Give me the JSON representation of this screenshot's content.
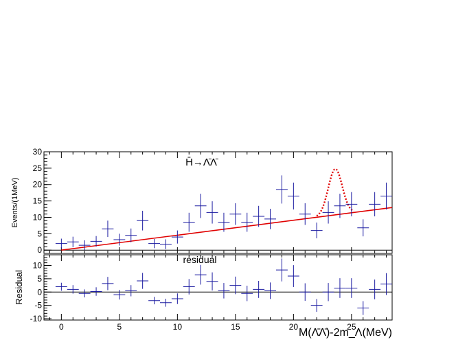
{
  "chart_data": [
    {
      "panel": "main",
      "type": "scatter",
      "title": "H̄→Λ̄Λ̄",
      "ylabel": "Events/(1MeV)",
      "xlabel": "",
      "xlim": [
        -1.5,
        28.5
      ],
      "ylim": [
        -1,
        30
      ],
      "yticks": [
        0,
        5,
        10,
        15,
        20,
        25,
        30
      ],
      "xticks": [
        0,
        5,
        10,
        15,
        20,
        25
      ],
      "grid": false,
      "series": [
        {
          "kind": "errorbar",
          "color": "#1a1aa0",
          "x": [
            0,
            1,
            2,
            3,
            4,
            5,
            6,
            7,
            8,
            9,
            10,
            11,
            12,
            13,
            14,
            15,
            16,
            17,
            18,
            19,
            20,
            21,
            22,
            23,
            24,
            25,
            26,
            27,
            28
          ],
          "y": [
            2,
            2.5,
            1.5,
            2.7,
            6.5,
            3.2,
            4.5,
            9,
            2,
            1.8,
            4,
            8.5,
            13.5,
            11.5,
            8.5,
            11,
            8.5,
            10.3,
            9.5,
            18.5,
            16.5,
            11,
            6,
            11.5,
            13.5,
            14,
            6.8,
            14,
            16.5
          ],
          "yerr": [
            1.5,
            1.6,
            1.5,
            1.6,
            2.5,
            1.8,
            2.1,
            3,
            1.4,
            1.5,
            2,
            2.9,
            3.7,
            3.4,
            2.9,
            3.3,
            2.9,
            3.2,
            3.1,
            4.3,
            4.1,
            3.3,
            2.4,
            3.4,
            3.7,
            3.7,
            2.6,
            3.7,
            4.1
          ]
        },
        {
          "kind": "line",
          "color": "#e00000",
          "x": [
            0,
            28.5
          ],
          "y": [
            0,
            13
          ]
        },
        {
          "kind": "dotted-peak",
          "color": "#e00000",
          "mean": 23.6,
          "sigma": 0.6,
          "amplitude": 14,
          "range": [
            22,
            25.2
          ]
        }
      ]
    },
    {
      "panel": "residual",
      "type": "scatter",
      "title": "residual",
      "ylabel": "Residual",
      "xlabel": "M(Λ̄Λ̄)-2m_Λ(MeV)",
      "xlim": [
        -1.5,
        28.5
      ],
      "ylim": [
        -10.5,
        14
      ],
      "yticks": [
        -10,
        -5,
        0,
        5,
        10
      ],
      "xticks": [
        0,
        5,
        10,
        15,
        20,
        25
      ],
      "grid": false,
      "series": [
        {
          "kind": "errorbar",
          "color": "#1a1aa0",
          "x": [
            0,
            1,
            2,
            3,
            4,
            5,
            6,
            7,
            8,
            9,
            10,
            11,
            12,
            13,
            14,
            15,
            16,
            17,
            18,
            19,
            20,
            21,
            22,
            23,
            24,
            25,
            26,
            27,
            28
          ],
          "y": [
            2,
            1,
            -0.5,
            0.2,
            3.2,
            -1,
            0.5,
            4.2,
            -3.2,
            -4,
            -2.5,
            2,
            6.5,
            4,
            0.5,
            2.5,
            -0.5,
            1,
            0.5,
            8.3,
            6,
            0,
            -5,
            0,
            1.5,
            1.5,
            -6,
            1,
            3
          ]
        }
      ]
    }
  ]
}
